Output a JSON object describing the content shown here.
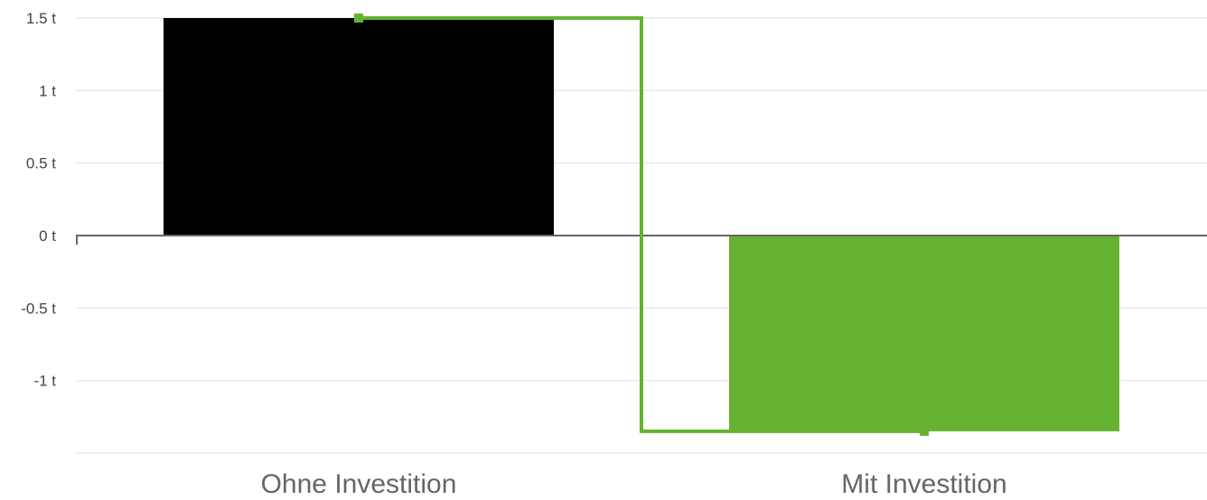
{
  "chart_data": {
    "type": "bar",
    "categories": [
      "Ohne Investition",
      "Mit Investition"
    ],
    "values": [
      1.5,
      -1.35
    ],
    "bar_colors": [
      "#000000",
      "#65b232"
    ],
    "y_ticks": [
      1.5,
      1,
      0.5,
      0,
      -0.5,
      -1
    ],
    "y_tick_labels": [
      "1.5 t",
      "1 t",
      "0.5 t",
      "0 t",
      "-0.5 t",
      "-1 t"
    ],
    "ylim": [
      -1.5,
      1.5
    ],
    "step_line": {
      "color": "#65b232",
      "values": [
        1.5,
        -1.35
      ]
    },
    "grid": true,
    "zero_line_color": "#666666",
    "grid_color": "#e6e9ee"
  }
}
